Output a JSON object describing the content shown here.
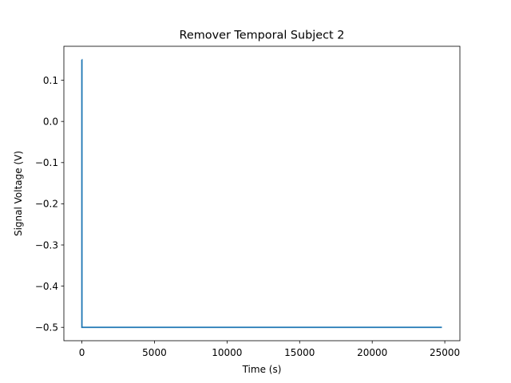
{
  "chart_data": {
    "type": "line",
    "title": "Remover Temporal Subject 2",
    "xlabel": "Time (s)",
    "ylabel": "Signal Voltage (V)",
    "xlim": [
      -1240,
      26040
    ],
    "ylim": [
      -0.5325,
      0.1825
    ],
    "xticks": [
      0,
      5000,
      10000,
      15000,
      20000,
      25000
    ],
    "yticks": [
      0.1,
      0.0,
      -0.1,
      -0.2,
      -0.3,
      -0.4,
      -0.5
    ],
    "xtick_labels": [
      "0",
      "5000",
      "10000",
      "15000",
      "20000",
      "25000"
    ],
    "ytick_labels": [
      "0.1",
      "0.0",
      "−0.1",
      "−0.2",
      "−0.3",
      "−0.4",
      "−0.5"
    ],
    "grid": false,
    "legend": "none",
    "series": [
      {
        "color": "#1f77b4",
        "x": [
          0,
          1,
          2,
          24800
        ],
        "y": [
          0.15,
          0.15,
          -0.5,
          -0.5
        ]
      }
    ]
  }
}
